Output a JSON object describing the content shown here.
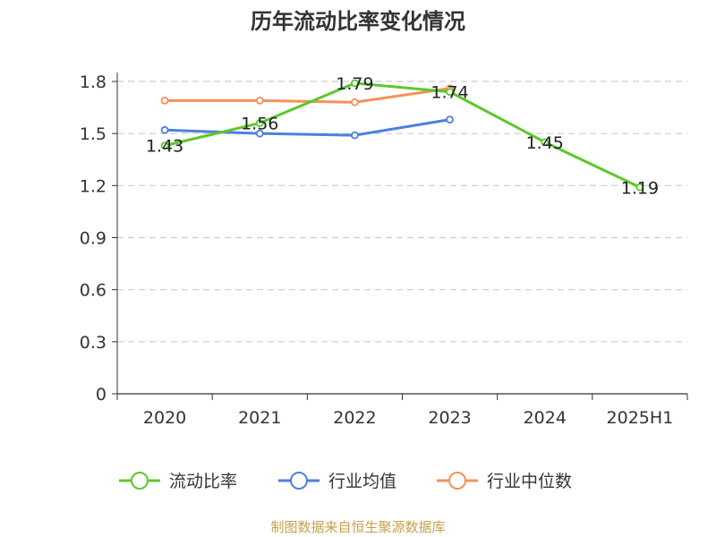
{
  "chart_data": {
    "type": "line",
    "title": "历年流动比率变化情况",
    "categories": [
      "2020",
      "2021",
      "2022",
      "2023",
      "2024",
      "2025H1"
    ],
    "ylim": [
      0,
      1.8
    ],
    "yticks": [
      "0",
      "0.3",
      "0.6",
      "0.9",
      "1.2",
      "1.5",
      "1.8"
    ],
    "grid": true,
    "legend_position": "bottom",
    "series": [
      {
        "name": "流动比率",
        "color": "#5cc82c",
        "values": [
          1.43,
          1.56,
          1.79,
          1.74,
          1.45,
          1.19
        ],
        "labels": [
          "1.43",
          "1.56",
          "1.79",
          "1.74",
          "1.45",
          "1.19"
        ]
      },
      {
        "name": "行业均值",
        "color": "#4e7fdc",
        "values": [
          1.52,
          1.5,
          1.49,
          1.58,
          null,
          null
        ]
      },
      {
        "name": "行业中位数",
        "color": "#f5915a",
        "values": [
          1.69,
          1.69,
          1.68,
          1.76,
          null,
          null
        ]
      }
    ]
  },
  "footer": {
    "source": "制图数据来自恒生聚源数据库"
  }
}
